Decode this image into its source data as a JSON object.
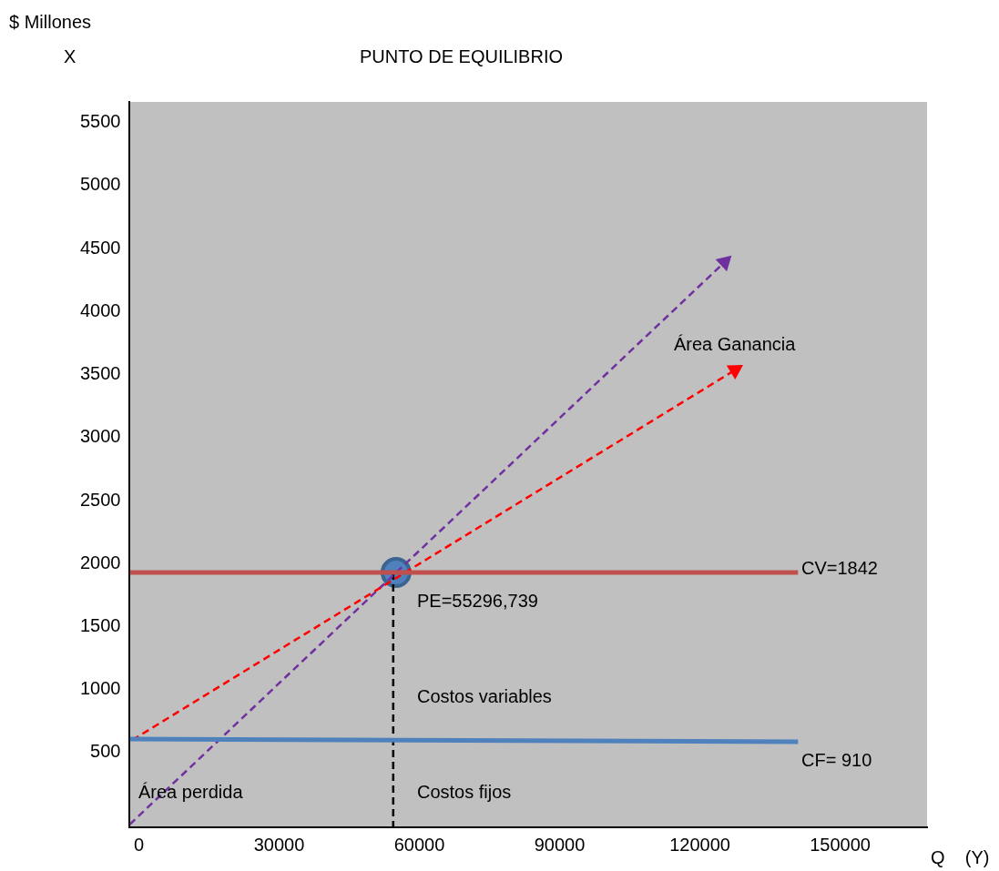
{
  "chart_data": {
    "type": "line",
    "title": "PUNTO DE EQUILIBRIO",
    "ylabel": "$ Millones",
    "xlabel": "Q    (Y)",
    "annotations": [
      "X",
      "Área Ganancia",
      "CV=1842",
      "PE=55296,739",
      "Costos variables",
      "CF= 910",
      "Área perdida",
      "Costos fijos"
    ],
    "xlim": [
      -1960,
      168600
    ],
    "xticks": [
      0,
      30000,
      60000,
      90000,
      120000,
      150000
    ],
    "ylim": [
      -93,
      5664
    ],
    "yticks": [
      500,
      1000,
      1500,
      2000,
      2500,
      3000,
      3500,
      4000,
      4500,
      5000,
      5500
    ],
    "grid": false,
    "legend": false,
    "marker": "none",
    "series": [
      {
        "type": "line",
        "color": "#c0504d",
        "x": [
          -1960,
          141000
        ],
        "values": [
          1930,
          1930
        ]
      },
      {
        "type": "line",
        "color": "#4f81bd",
        "x": [
          -1960,
          141000
        ],
        "values": [
          607,
          586
        ]
      },
      {
        "type": "line",
        "color": "#ff0000",
        "line_style": "dashed",
        "marker": "triangle",
        "x": [
          -1400,
          127500
        ],
        "values": [
          600,
          3536
        ]
      },
      {
        "type": "line",
        "color": "#7030a0",
        "line_style": "dashed",
        "marker": "triangle",
        "x": [
          -1960,
          125300
        ],
        "values": [
          -70,
          4393
        ]
      },
      {
        "type": "line",
        "color": "#000000",
        "line_style": "dashed",
        "x": [
          54400,
          54400
        ],
        "values": [
          1929,
          -93
        ]
      },
      {
        "type": "scatter",
        "color": "#4f81bd",
        "marker": "circle",
        "x": [
          55000
        ],
        "values": [
          1929
        ]
      }
    ]
  }
}
